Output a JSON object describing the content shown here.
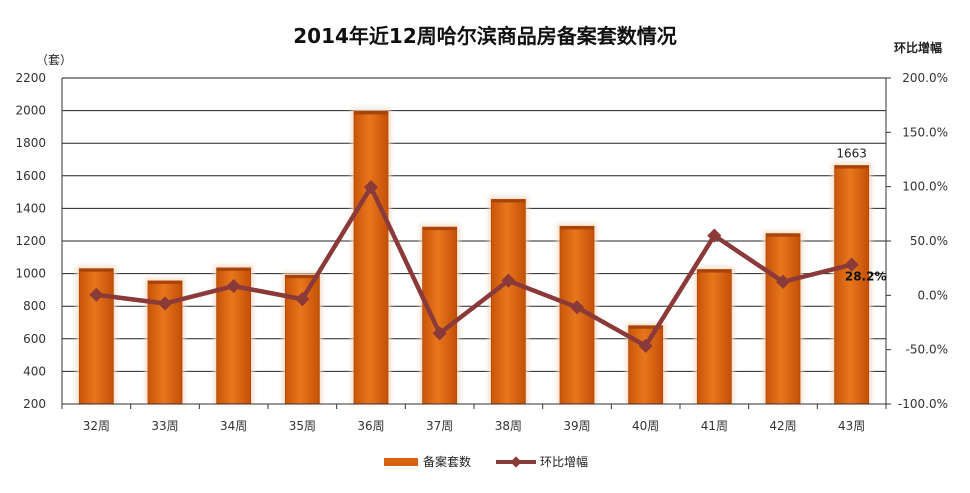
{
  "chart_data": {
    "type": "bar",
    "title": "2014年近12周哈尔滨商品房备案套数情况",
    "ylabel": "（套）",
    "y2label": "环比增幅",
    "categories": [
      "32周",
      "33周",
      "34周",
      "35周",
      "36周",
      "37周",
      "38周",
      "39周",
      "40周",
      "41周",
      "42周",
      "43周"
    ],
    "ylim": [
      200,
      2200
    ],
    "y_ticks": [
      "200",
      "400",
      "600",
      "800",
      "1000",
      "1200",
      "1400",
      "1600",
      "1800",
      "2000",
      "2200"
    ],
    "y2lim": [
      -100,
      200
    ],
    "y2_ticks": [
      "-100.0%",
      "-50.0%",
      "0.0%",
      "50.0%",
      "100.0%",
      "150.0%",
      "200.0%"
    ],
    "series": [
      {
        "name": "备案套数",
        "type": "bar",
        "axis": "left",
        "color": "#d9620e",
        "values": [
          1030,
          955,
          1035,
          990,
          1995,
          1285,
          1455,
          1290,
          680,
          1025,
          1245,
          1663
        ]
      },
      {
        "name": "环比增幅",
        "type": "line",
        "axis": "right",
        "color": "#8b3a3a",
        "values": [
          0.5,
          -7.5,
          8.5,
          -3.5,
          99.5,
          -35.0,
          13.5,
          -11.0,
          -46.5,
          55.0,
          12.5,
          28.2
        ]
      }
    ],
    "data_labels": [
      {
        "series": 0,
        "index": 11,
        "text": "1663"
      },
      {
        "series": 1,
        "index": 11,
        "text": "28.2%"
      }
    ],
    "grid": "horizontal",
    "legend": "bottom"
  }
}
